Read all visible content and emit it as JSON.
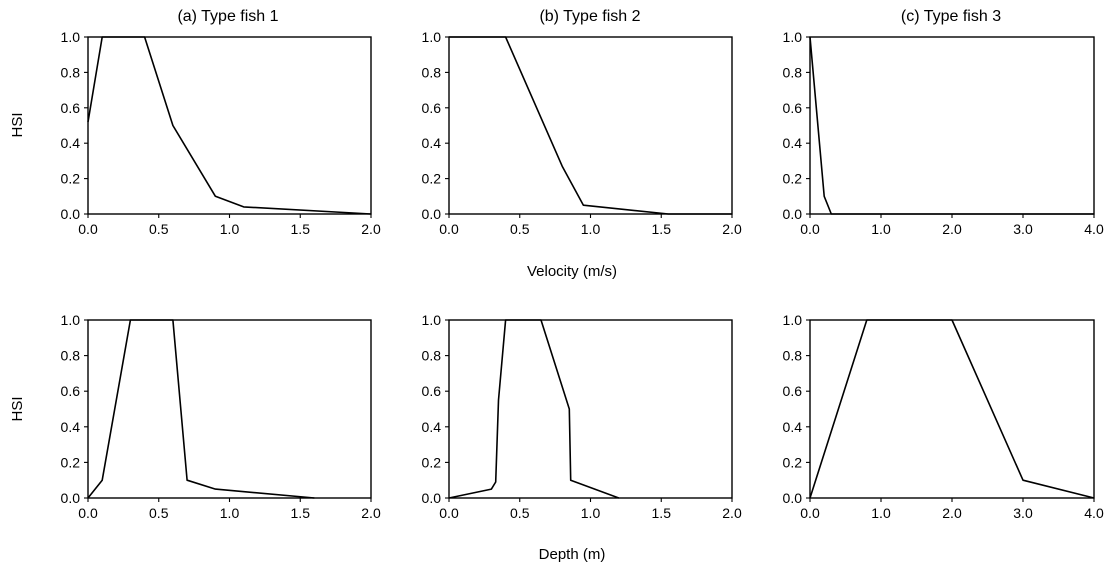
{
  "figure": {
    "titles": [
      "(a)  Type  fish  1",
      "(b)  Type  fish  2",
      "(c)  Type  fish  3"
    ],
    "row_titles": [
      "Velocity (m/s)",
      "Depth (m)"
    ],
    "y_axis_label": "HSI"
  },
  "chart_data": [
    {
      "type": "line",
      "title": "(a)  Type  fish  1",
      "xlabel": "Velocity (m/s)",
      "ylabel": "HSI",
      "xlim": [
        0,
        2
      ],
      "ylim": [
        0,
        1
      ],
      "xticks": [
        "0.0",
        "0.5",
        "1.0",
        "1.5",
        "2.0"
      ],
      "yticks": [
        "0.0",
        "0.2",
        "0.4",
        "0.6",
        "0.8",
        "1.0"
      ],
      "series": [
        {
          "x": [
            0,
            0.1,
            0.4,
            0.6,
            0.9,
            1.1,
            2.0
          ],
          "y": [
            0.52,
            1.0,
            1.0,
            0.5,
            0.1,
            0.04,
            0.0
          ]
        }
      ]
    },
    {
      "type": "line",
      "title": "(b)  Type  fish  2",
      "xlabel": "Velocity (m/s)",
      "ylabel": "",
      "xlim": [
        0,
        2
      ],
      "ylim": [
        0,
        1
      ],
      "xticks": [
        "0.0",
        "0.5",
        "1.0",
        "1.5",
        "2.0"
      ],
      "yticks": [
        "0.0",
        "0.2",
        "0.4",
        "0.6",
        "0.8",
        "1.0"
      ],
      "series": [
        {
          "x": [
            0,
            0.4,
            0.8,
            0.95,
            1.55,
            2.0
          ],
          "y": [
            1.0,
            1.0,
            0.27,
            0.05,
            0.0,
            0.0
          ]
        }
      ]
    },
    {
      "type": "line",
      "title": "(c)  Type  fish  3",
      "xlabel": "Velocity (m/s)",
      "ylabel": "",
      "xlim": [
        0,
        4
      ],
      "ylim": [
        0,
        1
      ],
      "xticks": [
        "0.0",
        "1.0",
        "2.0",
        "3.0",
        "4.0"
      ],
      "yticks": [
        "0.0",
        "0.2",
        "0.4",
        "0.6",
        "0.8",
        "1.0"
      ],
      "series": [
        {
          "x": [
            0,
            0.2,
            0.3,
            4.0
          ],
          "y": [
            1.0,
            0.1,
            0.0,
            0.0
          ]
        }
      ]
    },
    {
      "type": "line",
      "title": "",
      "xlabel": "Depth (m)",
      "ylabel": "HSI",
      "xlim": [
        0,
        2
      ],
      "ylim": [
        0,
        1
      ],
      "xticks": [
        "0.0",
        "0.5",
        "1.0",
        "1.5",
        "2.0"
      ],
      "yticks": [
        "0.0",
        "0.2",
        "0.4",
        "0.6",
        "0.8",
        "1.0"
      ],
      "series": [
        {
          "x": [
            0,
            0.1,
            0.3,
            0.6,
            0.7,
            0.9,
            1.6
          ],
          "y": [
            0.0,
            0.1,
            1.0,
            1.0,
            0.1,
            0.05,
            0.0
          ]
        }
      ]
    },
    {
      "type": "line",
      "title": "",
      "xlabel": "Depth (m)",
      "ylabel": "",
      "xlim": [
        0,
        2
      ],
      "ylim": [
        0,
        1
      ],
      "xticks": [
        "0.0",
        "0.5",
        "1.0",
        "1.5",
        "2.0"
      ],
      "yticks": [
        "0.0",
        "0.2",
        "0.4",
        "0.6",
        "0.8",
        "1.0"
      ],
      "series": [
        {
          "x": [
            0,
            0.3,
            0.33,
            0.35,
            0.4,
            0.65,
            0.85,
            0.86,
            1.2
          ],
          "y": [
            0.0,
            0.05,
            0.09,
            0.55,
            1.0,
            1.0,
            0.5,
            0.1,
            0.0
          ]
        }
      ]
    },
    {
      "type": "line",
      "title": "",
      "xlabel": "Depth (m)",
      "ylabel": "",
      "xlim": [
        0,
        4
      ],
      "ylim": [
        0,
        1
      ],
      "xticks": [
        "0.0",
        "1.0",
        "2.0",
        "3.0",
        "4.0"
      ],
      "yticks": [
        "0.0",
        "0.2",
        "0.4",
        "0.6",
        "0.8",
        "1.0"
      ],
      "series": [
        {
          "x": [
            0,
            0.8,
            2.0,
            3.0,
            4.0
          ],
          "y": [
            0.0,
            1.0,
            1.0,
            0.1,
            0.0
          ]
        }
      ]
    }
  ]
}
